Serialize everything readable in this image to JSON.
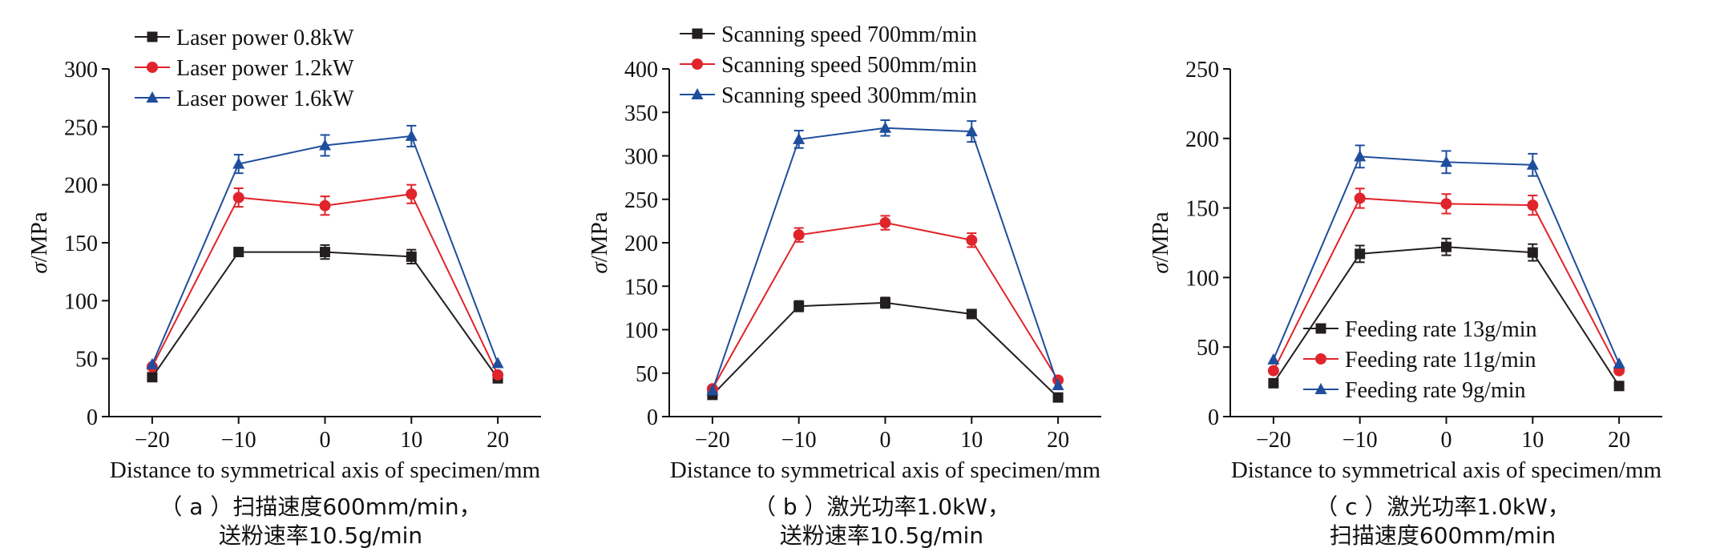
{
  "chart_data": [
    {
      "type": "line",
      "xlabel": "Distance to symmetrical axis of specimen/mm",
      "ylabel": "σ/MPa",
      "x": [
        -20,
        -10,
        0,
        10,
        20
      ],
      "x_ticks": [
        "−20",
        "−10",
        "0",
        "10",
        "20"
      ],
      "xlim": [
        -25,
        25
      ],
      "ylim": [
        0,
        300
      ],
      "y_ticks": [
        0,
        50,
        100,
        150,
        200,
        250,
        300
      ],
      "legend_position": "top-left",
      "caption": [
        "（ a ）扫描速度600mm/min，",
        "送粉速率10.5g/min"
      ],
      "series": [
        {
          "name": "Laser power 0.8kW",
          "color": "#231f20",
          "marker": "square",
          "values": [
            34,
            142,
            142,
            138,
            33
          ],
          "errors": [
            0,
            3,
            6,
            6,
            0
          ]
        },
        {
          "name": "Laser power 1.2kW",
          "color": "#e0242b",
          "marker": "circle",
          "values": [
            43,
            189,
            182,
            192,
            36
          ],
          "errors": [
            0,
            8,
            8,
            8,
            0
          ]
        },
        {
          "name": "Laser power 1.6kW",
          "color": "#1f4e9c",
          "marker": "triangle",
          "values": [
            45,
            218,
            234,
            242,
            46
          ],
          "errors": [
            0,
            8,
            9,
            9,
            0
          ]
        }
      ]
    },
    {
      "type": "line",
      "xlabel": "Distance to symmetrical axis of specimen/mm",
      "ylabel": "σ/MPa",
      "x": [
        -20,
        -10,
        0,
        10,
        20
      ],
      "x_ticks": [
        "−20",
        "−10",
        "0",
        "10",
        "20"
      ],
      "xlim": [
        -25,
        25
      ],
      "ylim": [
        0,
        400
      ],
      "y_ticks": [
        0,
        50,
        100,
        150,
        200,
        250,
        300,
        350,
        400
      ],
      "legend_position": "top-center",
      "caption": [
        "（ b ）激光功率1.0kW，",
        "送粉速率10.5g/min"
      ],
      "series": [
        {
          "name": "Scanning speed 700mm/min",
          "color": "#231f20",
          "marker": "square",
          "values": [
            25,
            127,
            131,
            118,
            22
          ],
          "errors": [
            0,
            6,
            6,
            4,
            0
          ]
        },
        {
          "name": "Scanning speed 500mm/min",
          "color": "#e0242b",
          "marker": "circle",
          "values": [
            32,
            209,
            223,
            203,
            42
          ],
          "errors": [
            0,
            8,
            8,
            8,
            0
          ]
        },
        {
          "name": "Scanning speed 300mm/min",
          "color": "#1f4e9c",
          "marker": "triangle",
          "values": [
            30,
            319,
            332,
            328,
            36
          ],
          "errors": [
            0,
            10,
            9,
            12,
            0
          ]
        }
      ]
    },
    {
      "type": "line",
      "xlabel": "Distance to symmetrical axis of specimen/mm",
      "ylabel": "σ/MPa",
      "x": [
        -20,
        -10,
        0,
        10,
        20
      ],
      "x_ticks": [
        "−20",
        "−10",
        "0",
        "10",
        "20"
      ],
      "xlim": [
        -25,
        25
      ],
      "ylim": [
        0,
        250
      ],
      "y_ticks": [
        0,
        50,
        100,
        150,
        200,
        250
      ],
      "legend_position": "bottom-right",
      "caption": [
        "（ c ）激光功率1.0kW，",
        "扫描速度600mm/min"
      ],
      "series": [
        {
          "name": "Feeding rate 13g/min",
          "color": "#231f20",
          "marker": "square",
          "values": [
            24,
            117,
            122,
            118,
            22
          ],
          "errors": [
            0,
            6,
            6,
            6,
            0
          ]
        },
        {
          "name": "Feeding rate 11g/min",
          "color": "#e0242b",
          "marker": "circle",
          "values": [
            33,
            157,
            153,
            152,
            33
          ],
          "errors": [
            0,
            7,
            7,
            7,
            0
          ]
        },
        {
          "name": "Feeding rate 9g/min",
          "color": "#1f4e9c",
          "marker": "triangle",
          "values": [
            41,
            187,
            183,
            181,
            38
          ],
          "errors": [
            0,
            8,
            8,
            8,
            0
          ]
        }
      ]
    }
  ]
}
